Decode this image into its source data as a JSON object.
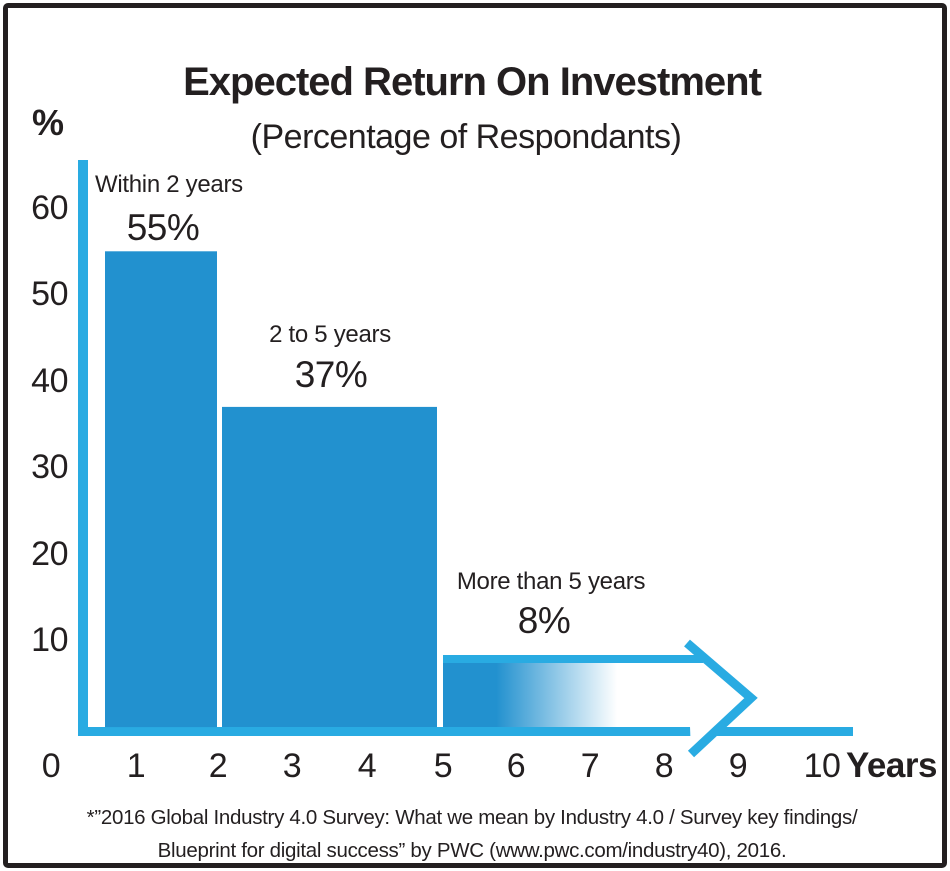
{
  "chart": {
    "title": "Expected Return On Investment",
    "subtitle": "(Percentage of Respondants)",
    "y_axis_unit": "%",
    "x_axis_unit": "Years"
  },
  "chart_data": {
    "type": "bar",
    "title": "Expected Return On Investment",
    "subtitle": "(Percentage of Respondants)",
    "ylabel": "%",
    "xlabel": "Years",
    "ylim": [
      0,
      65
    ],
    "xlim": [
      0,
      10
    ],
    "grid": false,
    "legend": "none",
    "y_ticks": [
      10,
      20,
      30,
      40,
      50,
      60
    ],
    "x_ticks": [
      0,
      1,
      2,
      3,
      4,
      5,
      6,
      7,
      8,
      9,
      10
    ],
    "bars": [
      {
        "category": "Within 2 years",
        "value": 55,
        "value_label": "55%",
        "style": "solid"
      },
      {
        "category": "2 to 5 years",
        "value": 37,
        "value_label": "37%",
        "style": "solid"
      },
      {
        "category": "More than 5 years",
        "value": 8,
        "value_label": "8%",
        "style": "gradient-fade-with-arrow"
      }
    ]
  },
  "footnote": {
    "line1": "*”2016 Global Industry 4.0 Survey: What we mean by Industry 4.0 / Survey key findings/",
    "line2": "Blueprint for digital success” by PWC (www.pwc.com/industry40), 2016."
  },
  "colors": {
    "axis": "#29ABE2",
    "bar": "#2291CF",
    "text": "#231F20"
  }
}
